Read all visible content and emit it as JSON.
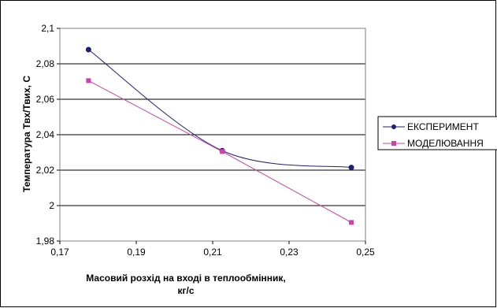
{
  "chart_data": {
    "type": "line",
    "xlabel_line1": "Масовий розхід на вході в теплообмінник,",
    "xlabel_line2": "кг/с",
    "ylabel": "Температура Твх/Твих, С",
    "xlim": [
      0.17,
      0.25
    ],
    "ylim": [
      1.98,
      2.1
    ],
    "x_ticks": [
      0.17,
      0.19,
      0.21,
      0.23,
      0.25
    ],
    "x_tick_labels": [
      "0,17",
      "0,19",
      "0,21",
      "0,23",
      "0,25"
    ],
    "y_ticks": [
      1.98,
      2.0,
      2.02,
      2.04,
      2.06,
      2.08,
      2.1
    ],
    "y_tick_labels": [
      "1,98",
      "2",
      "2,02",
      "2,04",
      "2,06",
      "2,08",
      "2,1"
    ],
    "grid": "horizontal",
    "legend_position": "right",
    "series": [
      {
        "name": "ЕКСПЕРИМЕНТ",
        "color": "#1F1F7A",
        "marker": "circle",
        "smooth": true,
        "x": [
          0.1775,
          0.2125,
          0.2463
        ],
        "y": [
          2.088,
          2.031,
          2.0215
        ]
      },
      {
        "name": "МОДЕЛЮВАННЯ",
        "color": "#CC44AA",
        "marker": "square",
        "smooth": false,
        "x": [
          0.1775,
          0.2125,
          0.2463
        ],
        "y": [
          2.0705,
          2.0305,
          1.9905
        ]
      }
    ]
  }
}
